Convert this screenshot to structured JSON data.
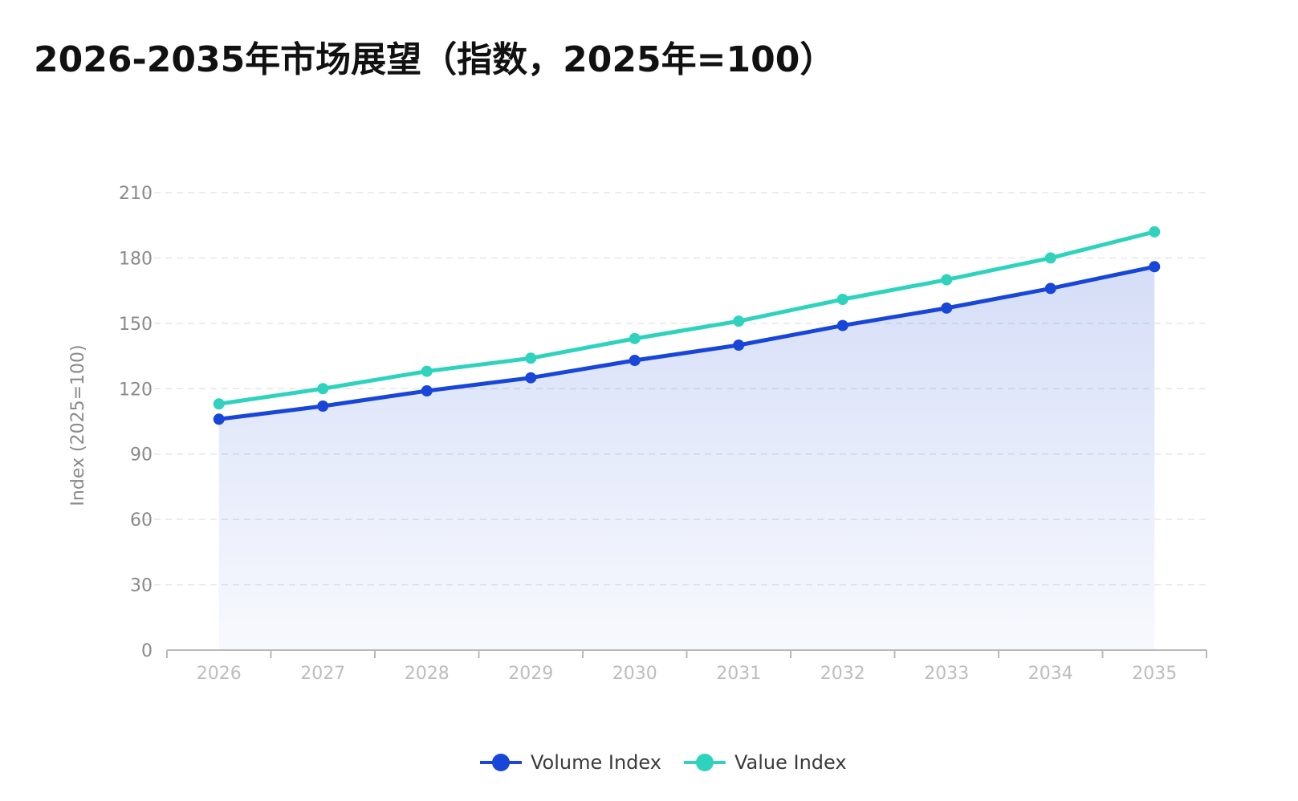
{
  "chart_data": {
    "type": "line",
    "title": "2026-2035年市场展望（指数，2025年=100）",
    "xlabel": "",
    "ylabel": "Index (2025=100)",
    "categories": [
      "2026",
      "2027",
      "2028",
      "2029",
      "2030",
      "2031",
      "2032",
      "2033",
      "2034",
      "2035"
    ],
    "ylim": [
      0,
      210
    ],
    "yticks": [
      0,
      30,
      60,
      90,
      120,
      150,
      180,
      210
    ],
    "grid": true,
    "legend_position": "bottom",
    "series": [
      {
        "name": "Volume Index",
        "values": [
          106,
          112,
          119,
          125,
          133,
          140,
          149,
          157,
          166,
          176
        ],
        "color": "#1746d8",
        "area_fill": true
      },
      {
        "name": "Value Index",
        "values": [
          113,
          120,
          128,
          134,
          143,
          151,
          161,
          170,
          180,
          192
        ],
        "color": "#2fd3bd",
        "area_fill": false
      }
    ],
    "colors": {
      "axis_tick_label": "#bdbdbd",
      "y_tick_label": "#8a8a8a",
      "axis_line": "#b9b9b9",
      "grid": "#e6e6e6"
    }
  }
}
